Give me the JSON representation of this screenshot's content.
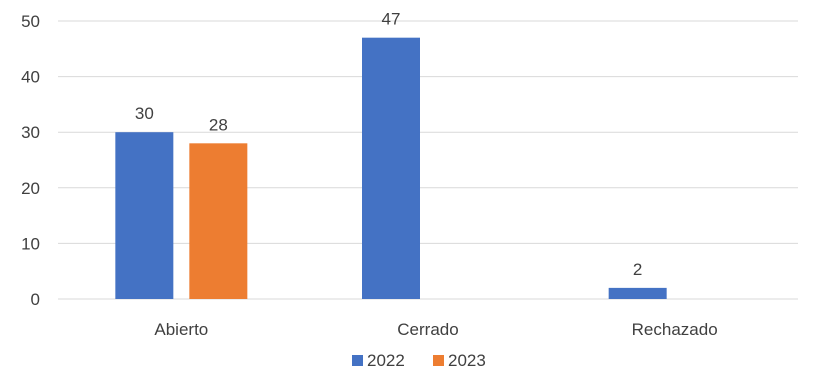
{
  "chart_data": {
    "type": "bar",
    "title": "",
    "xlabel": "",
    "ylabel": "",
    "categories": [
      "Abierto",
      "Cerrado",
      "Rechazado"
    ],
    "series": [
      {
        "name": "2022",
        "color": "#4472C4",
        "values": [
          30,
          47,
          2
        ]
      },
      {
        "name": "2023",
        "color": "#ED7D31",
        "values": [
          28,
          null,
          null
        ]
      }
    ],
    "ylim": [
      0,
      50
    ],
    "yticks": [
      0,
      10,
      20,
      30,
      40,
      50
    ],
    "grid": true,
    "data_labels": true,
    "legend_position": "bottom"
  }
}
